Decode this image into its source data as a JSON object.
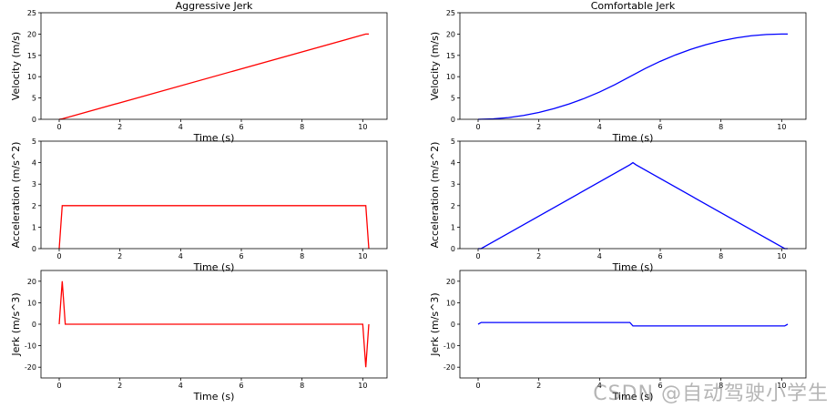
{
  "watermark": "CSDN @自动驾驶小学生",
  "chart_data": [
    {
      "type": "line",
      "title": "Aggressive Jerk",
      "xlabel": "Time (s)",
      "ylabel": "Velocity (m/s)",
      "xlim": [
        -0.6,
        10.8
      ],
      "ylim": [
        0,
        25
      ],
      "xticks": [
        0,
        2,
        4,
        6,
        8,
        10
      ],
      "yticks": [
        0,
        5,
        10,
        15,
        20,
        25
      ],
      "color": "#ff0000",
      "series": [
        {
          "x": [
            0,
            0.1,
            10.1,
            10.2
          ],
          "y": [
            0,
            0.1,
            20,
            20
          ]
        }
      ]
    },
    {
      "type": "line",
      "title": "Comfortable Jerk",
      "xlabel": "Time (s)",
      "ylabel": "Velocity (m/s)",
      "xlim": [
        -0.6,
        10.8
      ],
      "ylim": [
        0,
        25
      ],
      "xticks": [
        0,
        2,
        4,
        6,
        8,
        10
      ],
      "yticks": [
        0,
        5,
        10,
        15,
        20,
        25
      ],
      "color": "#0000ff",
      "series": [
        {
          "x": [
            0,
            0.5,
            1,
            1.5,
            2,
            2.5,
            3,
            3.5,
            4,
            4.5,
            5,
            5.5,
            6,
            6.5,
            7,
            7.5,
            8,
            8.5,
            9,
            9.5,
            10,
            10.2
          ],
          "y": [
            0,
            0.1,
            0.4,
            0.9,
            1.6,
            2.5,
            3.6,
            4.9,
            6.4,
            8.1,
            10.0,
            11.9,
            13.6,
            15.1,
            16.4,
            17.5,
            18.4,
            19.1,
            19.6,
            19.9,
            20.0,
            20.0
          ]
        }
      ]
    },
    {
      "type": "line",
      "title": "",
      "xlabel": "Time (s)",
      "ylabel": "Acceleration (m/s^2)",
      "xlim": [
        -0.6,
        10.8
      ],
      "ylim": [
        0,
        5
      ],
      "xticks": [
        0,
        2,
        4,
        6,
        8,
        10
      ],
      "yticks": [
        0,
        1,
        2,
        3,
        4,
        5
      ],
      "color": "#ff0000",
      "series": [
        {
          "x": [
            0,
            0.1,
            10.1,
            10.2
          ],
          "y": [
            0,
            2,
            2,
            0
          ]
        }
      ]
    },
    {
      "type": "line",
      "title": "",
      "xlabel": "Time (s)",
      "ylabel": "Acceleration (m/s^2)",
      "xlim": [
        -0.6,
        10.8
      ],
      "ylim": [
        0,
        5
      ],
      "xticks": [
        0,
        2,
        4,
        6,
        8,
        10
      ],
      "yticks": [
        0,
        1,
        2,
        3,
        4,
        5
      ],
      "color": "#0000ff",
      "series": [
        {
          "x": [
            0,
            0.1,
            5.0,
            5.1,
            5.2,
            10.1,
            10.2
          ],
          "y": [
            0,
            0,
            3.9,
            4.0,
            3.9,
            0,
            0
          ]
        }
      ]
    },
    {
      "type": "line",
      "title": "",
      "xlabel": "Time (s)",
      "ylabel": "Jerk (m/s^3)",
      "xlim": [
        -0.6,
        10.8
      ],
      "ylim": [
        -25,
        25
      ],
      "xticks": [
        0,
        2,
        4,
        6,
        8,
        10
      ],
      "yticks": [
        -20,
        -10,
        0,
        10,
        20
      ],
      "color": "#ff0000",
      "series": [
        {
          "x": [
            0,
            0.1,
            0.2,
            10.0,
            10.1,
            10.2
          ],
          "y": [
            0,
            20,
            0,
            0,
            -20,
            0
          ]
        }
      ]
    },
    {
      "type": "line",
      "title": "",
      "xlabel": "Time (s)",
      "ylabel": "Jerk (m/s^3)",
      "xlim": [
        -0.6,
        10.8
      ],
      "ylim": [
        -25,
        25
      ],
      "xticks": [
        0,
        2,
        4,
        6,
        8,
        10
      ],
      "yticks": [
        -20,
        -10,
        0,
        10,
        20
      ],
      "color": "#0000ff",
      "series": [
        {
          "x": [
            0,
            0.1,
            5.0,
            5.1,
            10.1,
            10.2
          ],
          "y": [
            0,
            0.8,
            0.8,
            -0.8,
            -0.8,
            0
          ]
        }
      ]
    }
  ]
}
